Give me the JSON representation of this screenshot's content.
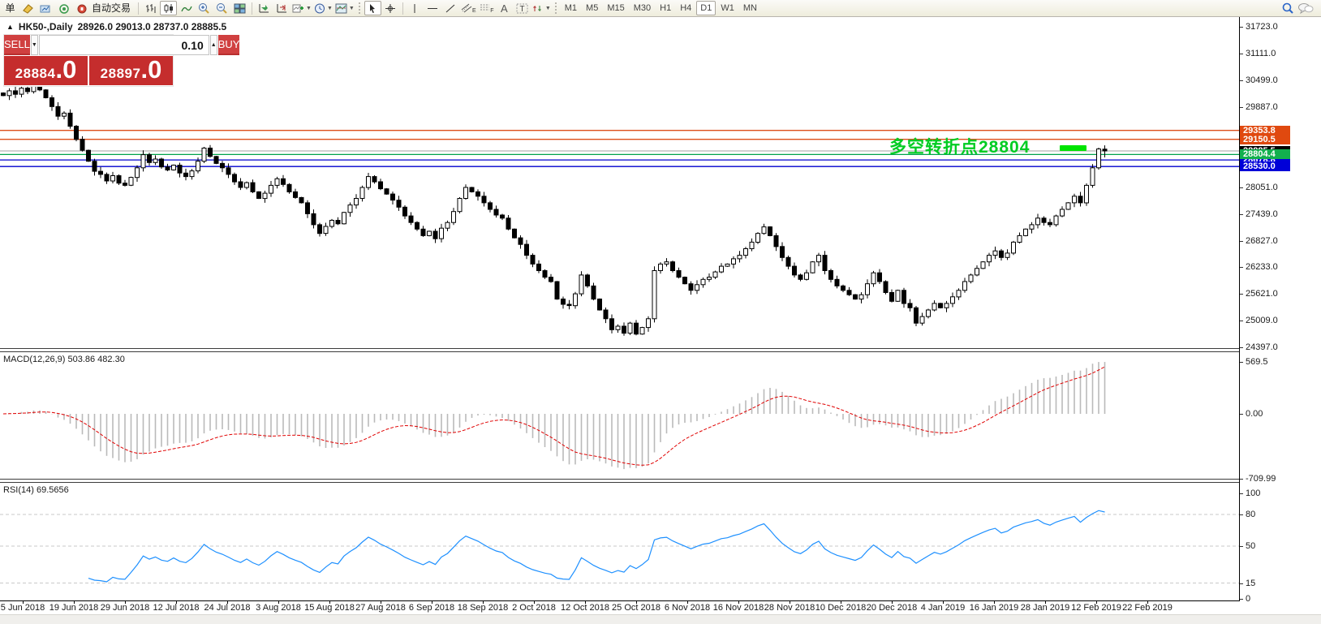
{
  "toolbar": {
    "menu_char": "单",
    "autotrading_label": "自动交易",
    "timeframes": [
      "M1",
      "M5",
      "M15",
      "M30",
      "H1",
      "H4",
      "D1",
      "W1",
      "MN"
    ],
    "active_timeframe": "D1",
    "text_tool_label": "A",
    "channel_sub": "E",
    "fibo_sub": "F"
  },
  "chart_header": {
    "symbol_timeframe": "HK50-,Daily",
    "ohlc_text": "28926.0 29013.0 28737.0 28885.5",
    "collapse_icon": "▲"
  },
  "trade_panel": {
    "sell_label": "SELL",
    "buy_label": "BUY",
    "volume": "0.10",
    "sell_price_main": "28884",
    "sell_price_frac": ".0",
    "buy_price_main": "28897",
    "buy_price_frac": ".0",
    "spin_down": "▼",
    "spin_up": "▲"
  },
  "macd_panel": {
    "label": "MACD(12,26,9) 503.86 482.30",
    "ticks": [
      {
        "v": 569.5,
        "t": "569.5"
      },
      {
        "v": 0,
        "t": "0.00"
      },
      {
        "v": -709.99,
        "t": "-709.99"
      }
    ]
  },
  "rsi_panel": {
    "label": "RSI(14) 69.5656",
    "ticks": [
      {
        "v": 100,
        "t": "100"
      },
      {
        "v": 80,
        "t": "80"
      },
      {
        "v": 50,
        "t": "50"
      },
      {
        "v": 15,
        "t": "15"
      },
      {
        "v": 0,
        "t": "0"
      }
    ],
    "dashed_levels": [
      80,
      50,
      15
    ]
  },
  "annotation": {
    "text": "多空转折点28804",
    "color": "#00cc22"
  },
  "chart_data": {
    "type": "candlestick",
    "symbol": "HK50-",
    "timeframe": "Daily",
    "title": "HK50-,Daily 28926.0 29013.0 28737.0 28885.5",
    "last_bar": {
      "open": 28926.0,
      "high": 29013.0,
      "low": 28737.0,
      "close": 28885.5
    },
    "bid": 28884.0,
    "ask": 28897.0,
    "ylim": [
      24397.0,
      31723.0
    ],
    "y_axis_ticks": [
      31723.0,
      31111.0,
      30499.0,
      29887.0,
      28051.0,
      27439.0,
      26827.0,
      26233.0,
      25621.0,
      25009.0,
      24397.0
    ],
    "x_axis_dates": [
      "5 Jun 2018",
      "19 Jun 2018",
      "29 Jun 2018",
      "12 Jul 2018",
      "24 Jul 2018",
      "3 Aug 2018",
      "15 Aug 2018",
      "27 Aug 2018",
      "6 Sep 2018",
      "18 Sep 2018",
      "2 Oct 2018",
      "12 Oct 2018",
      "25 Oct 2018",
      "6 Nov 2018",
      "16 Nov 2018",
      "28 Nov 2018",
      "10 Dec 2018",
      "20 Dec 2018",
      "4 Jan 2019",
      "16 Jan 2019",
      "28 Jan 2019",
      "12 Feb 2019",
      "22 Feb 2019"
    ],
    "levels": [
      {
        "price": 29353.8,
        "color": "#dd4f1b",
        "badge_bg": "#e0490f",
        "z": 3
      },
      {
        "price": 29150.5,
        "color": "#dd4f1b",
        "badge_bg": "#e0490f",
        "z": 3
      },
      {
        "price": 28885.5,
        "color": "#b3b3b3",
        "badge_bg": "#000000",
        "z": 4
      },
      {
        "price": 28804.4,
        "color": "#00a24b",
        "badge_bg": "#12b04e",
        "z": 7
      },
      {
        "price": 28678.8,
        "color": "#0000cd",
        "badge_bg": "#0000d8",
        "z": 5
      },
      {
        "price": 28530.0,
        "color": "#0000cd",
        "badge_bg": "#0000d8",
        "z": 6
      }
    ],
    "closes": [
      30150,
      30260,
      30180,
      30320,
      30240,
      30400,
      30280,
      30100,
      29900,
      29680,
      29750,
      29450,
      29150,
      28900,
      28650,
      28420,
      28350,
      28200,
      28320,
      28150,
      28100,
      28280,
      28500,
      28800,
      28620,
      28700,
      28520,
      28450,
      28560,
      28380,
      28300,
      28430,
      28650,
      28950,
      28760,
      28600,
      28500,
      28350,
      28180,
      28050,
      28160,
      27950,
      27800,
      27920,
      28100,
      28250,
      28120,
      27950,
      27820,
      27700,
      27450,
      27200,
      27000,
      27160,
      27300,
      27220,
      27480,
      27650,
      27800,
      28050,
      28300,
      28180,
      28020,
      27900,
      27760,
      27600,
      27400,
      27250,
      27100,
      26950,
      27050,
      26880,
      27120,
      27250,
      27500,
      27800,
      28050,
      27950,
      27850,
      27700,
      27550,
      27420,
      27350,
      27100,
      26900,
      26750,
      26500,
      26300,
      26150,
      26000,
      25900,
      25500,
      25380,
      25350,
      25620,
      26050,
      25800,
      25500,
      25250,
      25050,
      24800,
      24880,
      24720,
      24950,
      24700,
      24850,
      25050,
      26150,
      26300,
      26350,
      26150,
      26000,
      25850,
      25700,
      25830,
      25950,
      26000,
      26120,
      26250,
      26300,
      26420,
      26500,
      26650,
      26800,
      27000,
      27150,
      26950,
      26700,
      26450,
      26250,
      26050,
      25950,
      26100,
      26350,
      26500,
      26150,
      25950,
      25800,
      25700,
      25600,
      25500,
      25600,
      25850,
      26100,
      25900,
      25650,
      25450,
      25700,
      25400,
      25300,
      24950,
      25100,
      25250,
      25400,
      25300,
      25400,
      25550,
      25700,
      25900,
      26050,
      26200,
      26350,
      26500,
      26600,
      26450,
      26550,
      26800,
      26950,
      27100,
      27200,
      27350,
      27250,
      27200,
      27400,
      27550,
      27700,
      27850,
      27700,
      28100,
      28500,
      28930,
      28885.5
    ],
    "indicators": [
      {
        "name": "MACD",
        "params": [
          12,
          26,
          9
        ],
        "current": "503.86 482.30",
        "axis": {
          "max": 569.5,
          "zero": 0.0,
          "min": -709.99
        },
        "histogram_color": "#bababa",
        "signal_color": "#e00000"
      },
      {
        "name": "RSI",
        "params": [
          14
        ],
        "current": 69.5656,
        "levels": [
          80,
          50,
          15
        ],
        "axis": [
          0,
          100
        ],
        "line_color": "#1e90ff"
      }
    ],
    "annotation": {
      "text": "多空转折点28804",
      "near_price": 28804
    }
  }
}
